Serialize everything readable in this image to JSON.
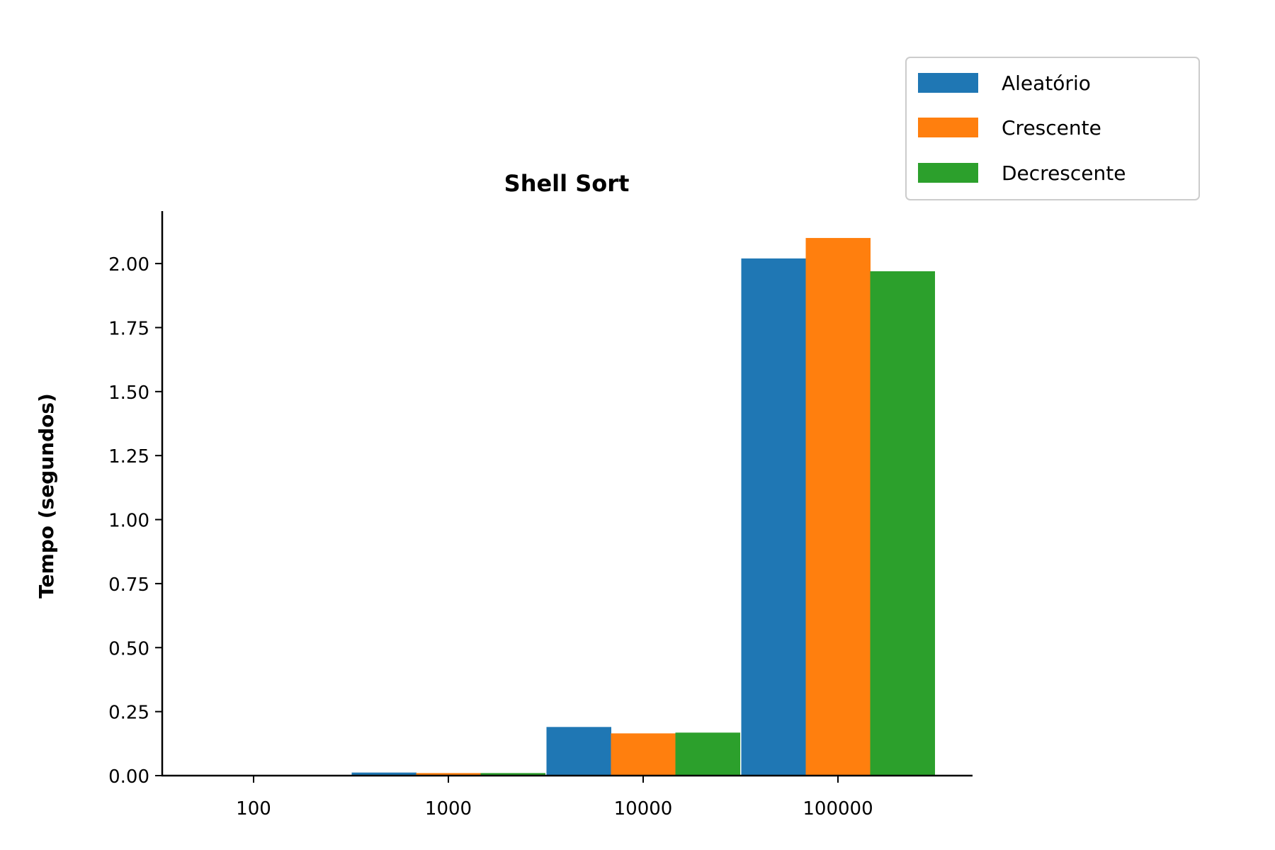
{
  "chart_data": {
    "type": "bar",
    "title": "Shell Sort",
    "xlabel": "",
    "ylabel": "Tempo (segundos)",
    "categories": [
      "100",
      "1000",
      "10000",
      "100000"
    ],
    "series": [
      {
        "name": "Aleatório",
        "color": "#1f77b4",
        "values": [
          0.0001,
          0.012,
          0.19,
          2.02
        ]
      },
      {
        "name": "Crescente",
        "color": "#ff7f0e",
        "values": [
          0.0001,
          0.01,
          0.165,
          2.1
        ]
      },
      {
        "name": "Decrescente",
        "color": "#2ca02c",
        "values": [
          0.0001,
          0.01,
          0.168,
          1.97
        ]
      }
    ],
    "ylim": [
      0,
      2.205
    ],
    "yticks": [
      "0.00",
      "0.25",
      "0.50",
      "0.75",
      "1.00",
      "1.25",
      "1.50",
      "1.75",
      "2.00"
    ],
    "grid": false,
    "legend_position": "top-right"
  }
}
